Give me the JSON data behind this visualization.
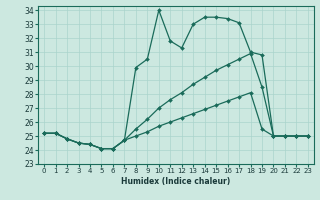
{
  "xlabel": "Humidex (Indice chaleur)",
  "background_color": "#cce8e0",
  "grid_color": "#aad4cc",
  "line_color": "#1a6b5a",
  "xlim": [
    -0.5,
    23.5
  ],
  "ylim": [
    23,
    34.3
  ],
  "xticks": [
    0,
    1,
    2,
    3,
    4,
    5,
    6,
    7,
    8,
    9,
    10,
    11,
    12,
    13,
    14,
    15,
    16,
    17,
    18,
    19,
    20,
    21,
    22,
    23
  ],
  "yticks": [
    23,
    24,
    25,
    26,
    27,
    28,
    29,
    30,
    31,
    32,
    33,
    34
  ],
  "line1_x": [
    0,
    1,
    2,
    3,
    4,
    5,
    6,
    7,
    8,
    9,
    10,
    11,
    12,
    13,
    14,
    15,
    16,
    17,
    18,
    19,
    20,
    21,
    22,
    23
  ],
  "line1_y": [
    25.2,
    25.2,
    24.8,
    24.5,
    24.4,
    24.1,
    24.1,
    24.7,
    29.9,
    30.5,
    34.0,
    31.8,
    31.3,
    33.0,
    33.5,
    33.5,
    33.4,
    33.1,
    31.0,
    30.8,
    25.0,
    25.0,
    25.0,
    25.0
  ],
  "line2_x": [
    0,
    1,
    2,
    3,
    4,
    5,
    6,
    7,
    8,
    9,
    10,
    11,
    12,
    13,
    14,
    15,
    16,
    17,
    18,
    19,
    20,
    21,
    22,
    23
  ],
  "line2_y": [
    25.2,
    25.2,
    24.8,
    24.5,
    24.4,
    24.1,
    24.1,
    24.7,
    25.5,
    26.2,
    27.0,
    27.6,
    28.1,
    28.7,
    29.2,
    29.7,
    30.1,
    30.5,
    30.9,
    28.5,
    25.0,
    25.0,
    25.0,
    25.0
  ],
  "line3_x": [
    0,
    1,
    2,
    3,
    4,
    5,
    6,
    7,
    8,
    9,
    10,
    11,
    12,
    13,
    14,
    15,
    16,
    17,
    18,
    19,
    20,
    21,
    22,
    23
  ],
  "line3_y": [
    25.2,
    25.2,
    24.8,
    24.5,
    24.4,
    24.1,
    24.1,
    24.7,
    25.0,
    25.3,
    25.7,
    26.0,
    26.3,
    26.6,
    26.9,
    27.2,
    27.5,
    27.8,
    28.1,
    25.5,
    25.0,
    25.0,
    25.0,
    25.0
  ]
}
